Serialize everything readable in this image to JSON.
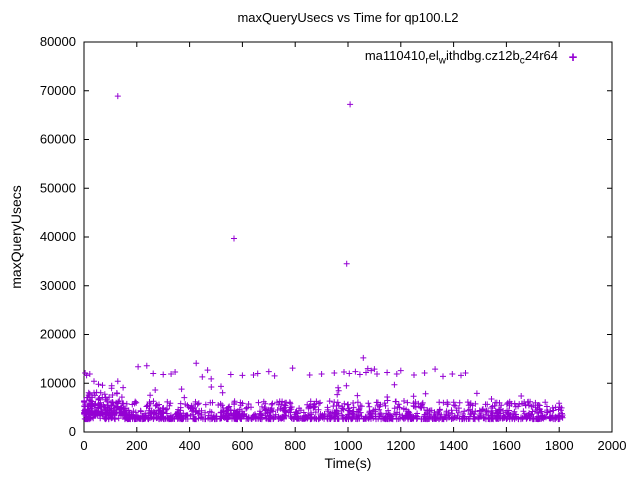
{
  "chart_data": {
    "type": "scatter",
    "title": "maxQueryUsecs vs Time for qp100.L2",
    "xlabel": "Time(s)",
    "ylabel": "maxQueryUsecs",
    "xlim": [
      0,
      2000
    ],
    "ylim": [
      0,
      80000
    ],
    "xticks": [
      0,
      200,
      400,
      600,
      800,
      1000,
      1200,
      1400,
      1600,
      1800,
      2000
    ],
    "yticks": [
      0,
      10000,
      20000,
      30000,
      40000,
      50000,
      60000,
      70000,
      80000
    ],
    "grid": false,
    "marker_color": "#9400d3",
    "marker_style": "plus",
    "legend": {
      "label": "ma110410_rel_withdbg.cz12b_c24r64",
      "position": "top-right-inside",
      "marker_char": "+",
      "segments": [
        {
          "text": "ma110410"
        },
        {
          "text": "r",
          "sub": true
        },
        {
          "text": "el"
        },
        {
          "text": "w",
          "sub": true
        },
        {
          "text": "ithdbg.cz12b"
        },
        {
          "text": "c",
          "sub": true
        },
        {
          "text": "24r64"
        }
      ]
    },
    "points_outliers": [
      [
        128,
        68900
      ],
      [
        1008,
        67200
      ],
      [
        568,
        39700
      ],
      [
        995,
        34500
      ]
    ],
    "points_upper": [
      [
        4,
        12100
      ],
      [
        10,
        11600
      ],
      [
        22,
        11900
      ],
      [
        38,
        10400
      ],
      [
        55,
        9800
      ],
      [
        70,
        9600
      ],
      [
        105,
        9500
      ],
      [
        128,
        10400
      ],
      [
        148,
        9100
      ],
      [
        205,
        13400
      ],
      [
        238,
        13600
      ],
      [
        262,
        12000
      ],
      [
        300,
        11800
      ],
      [
        330,
        11900
      ],
      [
        345,
        12300
      ],
      [
        425,
        14100
      ],
      [
        448,
        11300
      ],
      [
        468,
        12700
      ],
      [
        482,
        10900
      ],
      [
        556,
        11800
      ],
      [
        600,
        11600
      ],
      [
        642,
        11700
      ],
      [
        658,
        12000
      ],
      [
        700,
        12400
      ],
      [
        722,
        11500
      ],
      [
        790,
        13100
      ],
      [
        855,
        11700
      ],
      [
        900,
        11900
      ],
      [
        948,
        12100
      ],
      [
        985,
        12300
      ],
      [
        1005,
        12000
      ],
      [
        1028,
        12400
      ],
      [
        1045,
        11800
      ],
      [
        1058,
        15200
      ],
      [
        1068,
        12200
      ],
      [
        1075,
        13000
      ],
      [
        1088,
        12600
      ],
      [
        1100,
        12900
      ],
      [
        1110,
        11900
      ],
      [
        1148,
        12200
      ],
      [
        1185,
        11900
      ],
      [
        1200,
        12600
      ],
      [
        1250,
        11700
      ],
      [
        1290,
        12100
      ],
      [
        1330,
        12900
      ],
      [
        1360,
        11400
      ],
      [
        1395,
        11900
      ],
      [
        1428,
        11600
      ],
      [
        1445,
        12100
      ]
    ],
    "band": {
      "count": 1150,
      "x_min": 2,
      "x_max": 1815,
      "x_pow": 1,
      "y_min": 2650,
      "y_max": 6300,
      "y_pow": 2.4,
      "seed": 11
    },
    "early_cluster": {
      "count": 140,
      "x_min": 0,
      "x_max": 160,
      "x_pow": 1.6,
      "y_min": 3600,
      "y_max": 8200,
      "y_pow": 2.0,
      "seed": 5
    },
    "mid_scatter": {
      "count": 30,
      "x_min": 20,
      "x_max": 1780,
      "x_pow": 1,
      "y_min": 5800,
      "y_max": 9800,
      "y_pow": 1.8,
      "seed": 9
    }
  }
}
